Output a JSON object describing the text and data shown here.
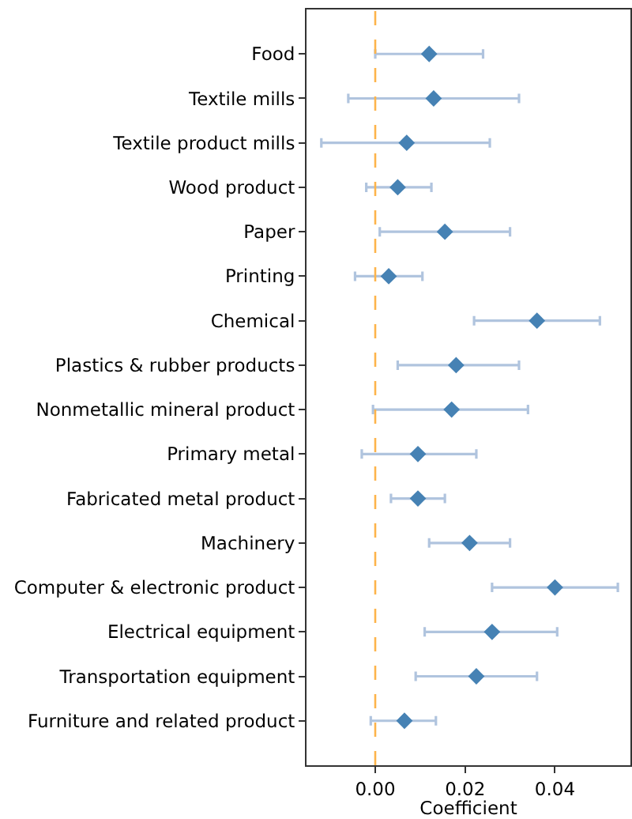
{
  "chart_data": {
    "type": "scatter",
    "orientation": "horizontal",
    "marker": "diamond",
    "color": "#4682b4",
    "categories": [
      "Food",
      "Textile mills",
      "Textile product mills",
      "Wood product",
      "Paper",
      "Printing",
      "Chemical",
      "Plastics & rubber products",
      "Nonmetallic mineral product",
      "Primary metal",
      "Fabricated metal product",
      "Machinery",
      "Computer & electronic product",
      "Electrical equipment",
      "Transportation equipment",
      "Furniture and related product"
    ],
    "values": [
      0.012,
      0.013,
      0.007,
      0.005,
      0.0155,
      0.003,
      0.036,
      0.018,
      0.017,
      0.0095,
      0.0095,
      0.021,
      0.04,
      0.026,
      0.0225,
      0.0065
    ],
    "errors": [
      [
        0.0,
        0.024
      ],
      [
        -0.006,
        0.032
      ],
      [
        -0.012,
        0.0255
      ],
      [
        -0.002,
        0.0125
      ],
      [
        0.001,
        0.03
      ],
      [
        -0.0045,
        0.0105
      ],
      [
        0.022,
        0.05
      ],
      [
        0.005,
        0.032
      ],
      [
        -0.0005,
        0.034
      ],
      [
        -0.003,
        0.0225
      ],
      [
        0.0035,
        0.0155
      ],
      [
        0.012,
        0.03
      ],
      [
        0.026,
        0.054
      ],
      [
        0.011,
        0.0405
      ],
      [
        0.009,
        0.036
      ],
      [
        -0.001,
        0.0135
      ]
    ],
    "xlabel": "Coefficient",
    "xlim": [
      -0.0153,
      0.0568
    ],
    "xticks": [
      {
        "value": 0,
        "label": "0.00"
      },
      0.02,
      0.04
    ],
    "ref_lines": [
      {
        "axis": "x",
        "value": 0,
        "color": "#fdb44b",
        "line_style": "dashed"
      }
    ]
  }
}
